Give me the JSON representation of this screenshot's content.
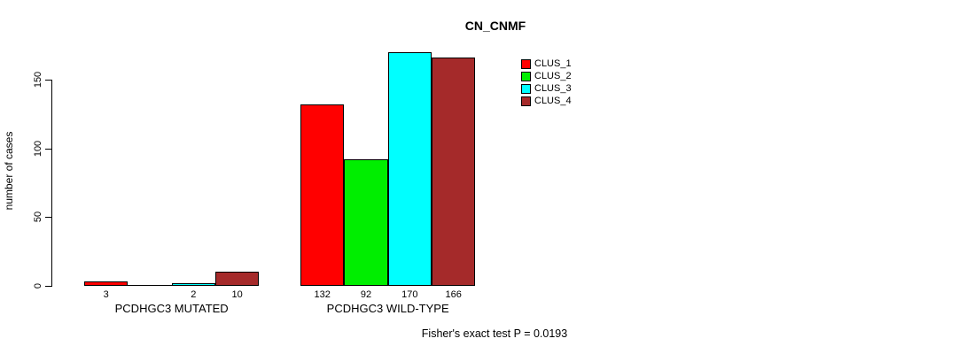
{
  "chart_data": {
    "type": "bar",
    "title": "CN_CNMF",
    "ylabel": "number of cases",
    "xlabel": "",
    "y_ticks": [
      0,
      50,
      100,
      150
    ],
    "ylim": [
      0,
      175
    ],
    "grid": false,
    "legend_position": "top-right",
    "categories": [
      "PCDHGC3 MUTATED",
      "PCDHGC3 WILD-TYPE"
    ],
    "series": [
      {
        "name": "CLUS_1",
        "color": "#FF0000",
        "values": [
          3,
          132
        ]
      },
      {
        "name": "CLUS_2",
        "color": "#00EE00",
        "values": [
          0,
          92
        ]
      },
      {
        "name": "CLUS_3",
        "color": "#00FFFF",
        "values": [
          2,
          170
        ]
      },
      {
        "name": "CLUS_4",
        "color": "#A52A2A",
        "values": [
          10,
          166
        ]
      }
    ],
    "value_labels": [
      [
        "3",
        "",
        "2",
        "10"
      ],
      [
        "132",
        "92",
        "170",
        "166"
      ]
    ],
    "annotation": "Fisher's exact test P = 0.0193",
    "axis_color": "#000000",
    "background_color": "#FFFFFF"
  }
}
